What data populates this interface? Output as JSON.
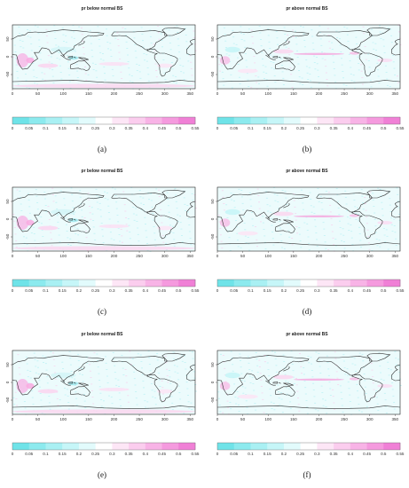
{
  "panels": [
    {
      "id": "a",
      "title": "pr below normal BS",
      "letter": "(a)"
    },
    {
      "id": "b",
      "title": "pr above normal BS",
      "letter": "(b)"
    },
    {
      "id": "c",
      "title": "pr below normal BS",
      "letter": "(c)"
    },
    {
      "id": "d",
      "title": "pr above normal BS",
      "letter": "(d)"
    },
    {
      "id": "e",
      "title": "pr below normal BS",
      "letter": "(e)"
    },
    {
      "id": "f",
      "title": "pr above normal BS",
      "letter": "(f)"
    }
  ],
  "map": {
    "x_ticks": [
      "0",
      "50",
      "100",
      "150",
      "200",
      "250",
      "300",
      "350"
    ],
    "y_ticks": [
      "50",
      "0",
      "-50"
    ]
  },
  "colorbar": {
    "labels": [
      "0",
      "0.05",
      "0.1",
      "0.15",
      "0.2",
      "0.25",
      "0.3",
      "0.35",
      "0.4",
      "0.45",
      "0.5",
      "0.55"
    ],
    "colors": [
      "#6fe3e8",
      "#8ceaee",
      "#a9f0f3",
      "#c6f6f8",
      "#e2fbfc",
      "#ffffff",
      "#fde6f6",
      "#fbcdee",
      "#f8b3e6",
      "#f59ade",
      "#f080d6"
    ]
  }
}
